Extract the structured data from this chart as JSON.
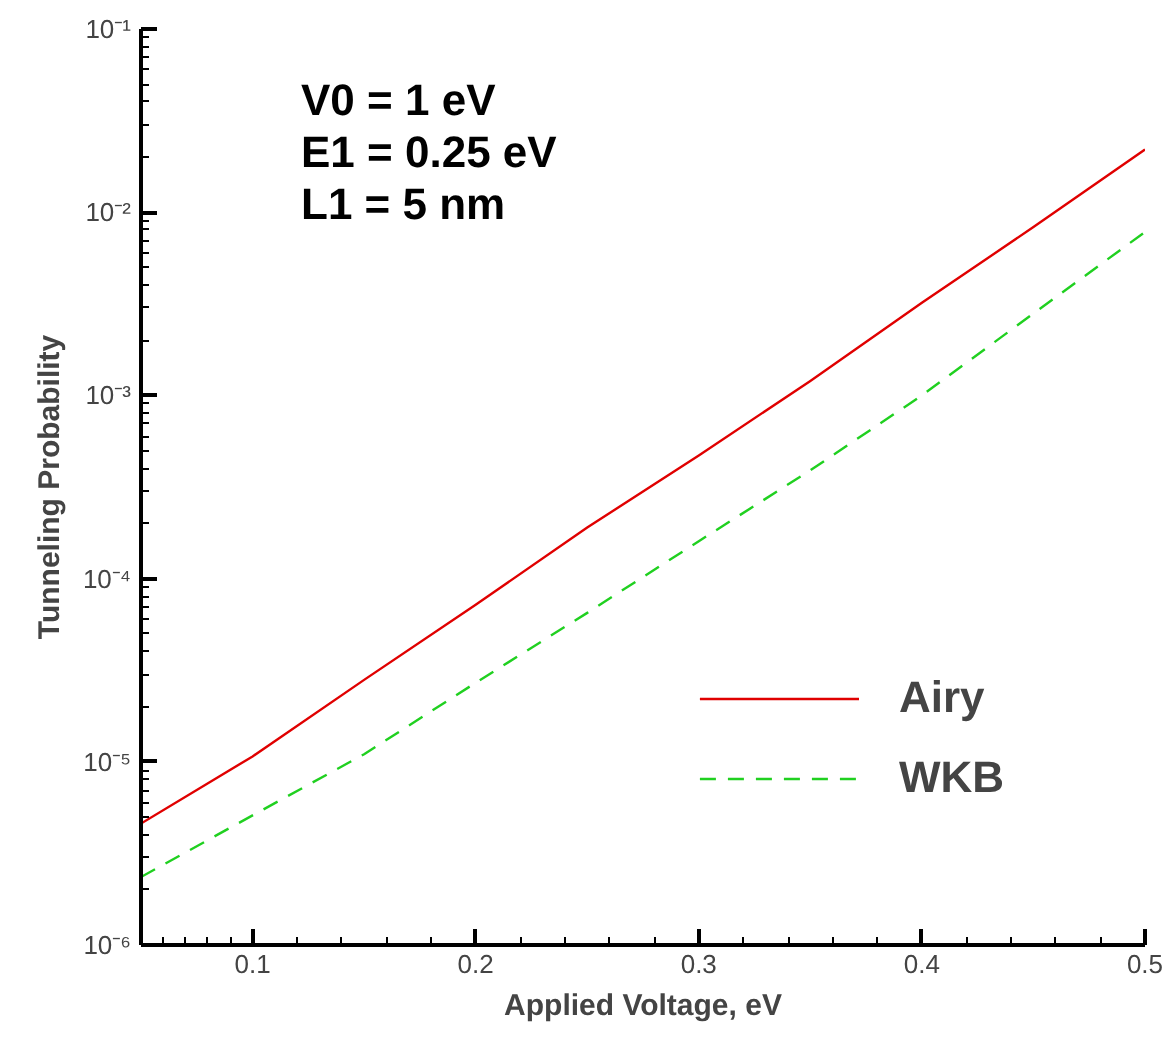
{
  "chart_data": {
    "type": "line",
    "xlabel": "Applied Voltage, eV",
    "ylabel": "Tunneling Probability",
    "annotations": [
      "V0 = 1 eV",
      "E1 = 0.25 eV",
      "L1 = 5 nm"
    ],
    "x": [
      0.05,
      0.1,
      0.15,
      0.2,
      0.25,
      0.3,
      0.35,
      0.4,
      0.45,
      0.5
    ],
    "series": [
      {
        "name": "Airy",
        "color": "#e00000",
        "line_style": "solid",
        "values": [
          4.6e-06,
          1.07e-05,
          2.8e-05,
          7.2e-05,
          0.00019,
          0.00047,
          0.0012,
          0.0032,
          0.0083,
          0.022
        ]
      },
      {
        "name": "WKB",
        "color": "#20d020",
        "line_style": "dashed",
        "values": [
          2.35e-06,
          5.1e-06,
          1.1e-05,
          2.7e-05,
          6.5e-05,
          0.00016,
          0.00039,
          0.001,
          0.0028,
          0.0078
        ]
      }
    ],
    "log": "y",
    "xlim": [
      0.05,
      0.5
    ],
    "ylim": [
      1e-06,
      0.1
    ],
    "xticks": [
      0.1,
      0.2,
      0.3,
      0.4,
      0.5
    ],
    "yticks": [
      {
        "value": 1e-06,
        "label": "10⁻⁶"
      },
      {
        "value": 1e-05,
        "label": "10⁻⁵"
      },
      {
        "value": 0.0001,
        "label": "10⁻⁴"
      },
      {
        "value": 0.001,
        "label": "10⁻³"
      },
      {
        "value": 0.01,
        "label": "10⁻²"
      },
      {
        "value": 0.1,
        "label": "10⁻¹"
      }
    ],
    "grid": false,
    "legend": "bottom right"
  }
}
